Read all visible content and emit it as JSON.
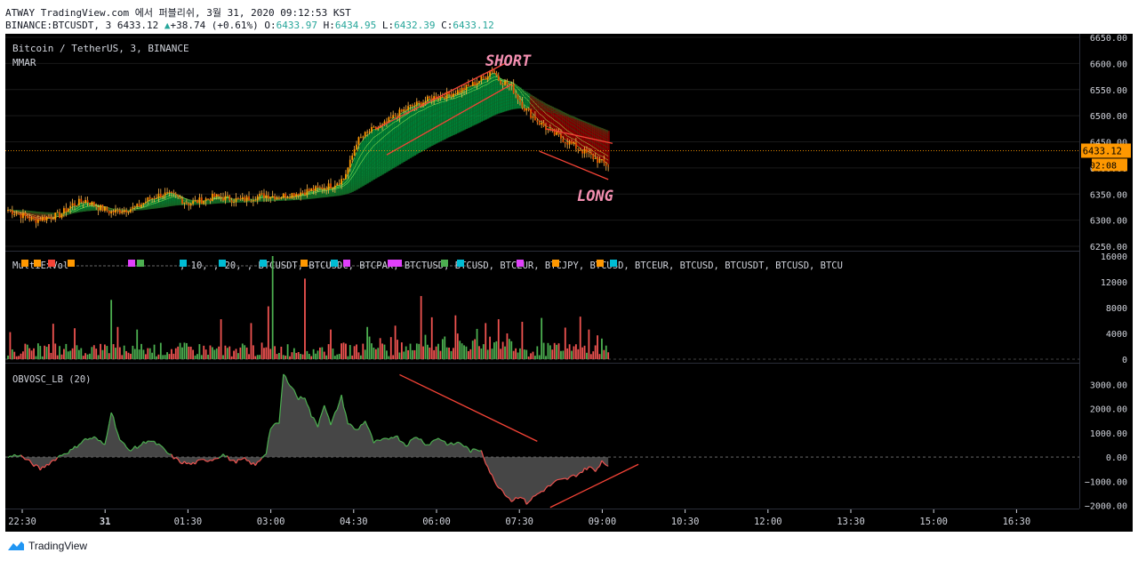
{
  "header": {
    "line1": "ATWAY TradingView.com 에서 퍼블리쉬, 3월 31, 2020 09:12:53 KST",
    "symbol": "BINANCE:BTCUSDT, 3",
    "price": "6433.12",
    "change_arrow": "▲",
    "change": "+38.74 (+0.61%)",
    "o_label": "O:",
    "o": "6433.97",
    "h_label": "H:",
    "h": "6434.95",
    "l_label": "L:",
    "l": "6432.39",
    "c_label": "C:",
    "c": "6433.12"
  },
  "footer": {
    "brand": "TradingView"
  },
  "chart_data": [
    {
      "type": "candlestick",
      "title": "Bitcoin / TetherUS, 3, BINANCE",
      "subtitle": "MMAR",
      "ylim": [
        6245,
        6650
      ],
      "yticks": [
        6250,
        6300,
        6350,
        6400,
        6450,
        6500,
        6550,
        6600,
        6650
      ],
      "ytick_labels": [
        "6250.00",
        "6300.00",
        "6350.00",
        "6400.00",
        "6450.00",
        "6500.00",
        "6550.00",
        "6600.00",
        "6650.00"
      ],
      "price_line": 6433.12,
      "price_tag": "6433.12",
      "countdown_tag": "02:08",
      "annotations": [
        "SHORT",
        "LONG"
      ],
      "close_path": [
        [
          0,
          6320
        ],
        [
          6,
          6310
        ],
        [
          12,
          6300
        ],
        [
          18,
          6305
        ],
        [
          24,
          6310
        ],
        [
          30,
          6330
        ],
        [
          36,
          6338
        ],
        [
          42,
          6325
        ],
        [
          48,
          6315
        ],
        [
          54,
          6320
        ],
        [
          60,
          6325
        ],
        [
          66,
          6342
        ],
        [
          72,
          6350
        ],
        [
          78,
          6345
        ],
        [
          84,
          6332
        ],
        [
          90,
          6338
        ],
        [
          96,
          6345
        ],
        [
          102,
          6342
        ],
        [
          108,
          6338
        ],
        [
          114,
          6344
        ],
        [
          120,
          6348
        ],
        [
          126,
          6345
        ],
        [
          132,
          6350
        ],
        [
          138,
          6355
        ],
        [
          144,
          6360
        ],
        [
          150,
          6366
        ],
        [
          156,
          6380
        ],
        [
          159,
          6410
        ],
        [
          162,
          6450
        ],
        [
          168,
          6470
        ],
        [
          174,
          6480
        ],
        [
          180,
          6500
        ],
        [
          186,
          6515
        ],
        [
          192,
          6525
        ],
        [
          198,
          6535
        ],
        [
          204,
          6540
        ],
        [
          210,
          6548
        ],
        [
          216,
          6560
        ],
        [
          222,
          6575
        ],
        [
          225,
          6590
        ],
        [
          228,
          6570
        ],
        [
          234,
          6555
        ],
        [
          240,
          6515
        ],
        [
          246,
          6490
        ],
        [
          252,
          6470
        ],
        [
          258,
          6455
        ],
        [
          264,
          6440
        ],
        [
          270,
          6425
        ],
        [
          276,
          6410
        ],
        [
          282,
          6400
        ],
        [
          288,
          6410
        ],
        [
          294,
          6425
        ],
        [
          300,
          6433
        ]
      ]
    },
    {
      "type": "bar",
      "title": "MultiExVol",
      "legend_tail": ", 10, , 20, , BTCUSDT, BTCUSDC, BTCPAX, BTCTUSD, BTCUSD, BTCEUR, BTCJPY, BTCUSD, BTCEUR, BTCUSD, BTCUSDT, BTCUSD, BTCU",
      "ylim": [
        0,
        16000
      ],
      "yticks": [
        0,
        4000,
        8000,
        12000,
        16000
      ],
      "ytick_labels": [
        "0",
        "4000",
        "8000",
        "12000",
        "16000"
      ],
      "spikes": [
        [
          1,
          4200
        ],
        [
          21,
          5500
        ],
        [
          31,
          4800
        ],
        [
          48,
          9200
        ],
        [
          51,
          5000
        ],
        [
          60,
          4600
        ],
        [
          99,
          6200
        ],
        [
          113,
          5600
        ],
        [
          121,
          8200
        ],
        [
          123,
          16000
        ],
        [
          138,
          12500
        ],
        [
          150,
          4600
        ],
        [
          167,
          5000
        ],
        [
          180,
          5200
        ],
        [
          192,
          9800
        ],
        [
          197,
          6500
        ],
        [
          208,
          6800
        ],
        [
          218,
          4700
        ],
        [
          222,
          5600
        ],
        [
          228,
          6200
        ],
        [
          232,
          4000
        ],
        [
          239,
          5800
        ],
        [
          248,
          6400
        ],
        [
          259,
          4900
        ],
        [
          266,
          6600
        ],
        [
          270,
          4600
        ],
        [
          274,
          3700
        ],
        [
          276,
          3200
        ]
      ]
    },
    {
      "type": "area",
      "title": "OBVOSC_LB (20)",
      "ylim": [
        -2200,
        3600
      ],
      "yticks": [
        -2000,
        -1000,
        0,
        1000,
        2000,
        3000
      ],
      "ytick_labels": [
        "−2000.00",
        "−1000.00",
        "0.00",
        "1000.00",
        "2000.00",
        "3000.00"
      ],
      "path": [
        [
          0,
          0
        ],
        [
          5,
          100
        ],
        [
          10,
          -200
        ],
        [
          15,
          -500
        ],
        [
          20,
          -200
        ],
        [
          25,
          100
        ],
        [
          30,
          300
        ],
        [
          35,
          700
        ],
        [
          40,
          800
        ],
        [
          45,
          500
        ],
        [
          48,
          1900
        ],
        [
          52,
          700
        ],
        [
          56,
          300
        ],
        [
          60,
          400
        ],
        [
          65,
          700
        ],
        [
          70,
          500
        ],
        [
          75,
          100
        ],
        [
          80,
          -200
        ],
        [
          85,
          -300
        ],
        [
          90,
          -150
        ],
        [
          95,
          -100
        ],
        [
          100,
          100
        ],
        [
          105,
          -200
        ],
        [
          110,
          -100
        ],
        [
          115,
          -350
        ],
        [
          120,
          200
        ],
        [
          122,
          1200
        ],
        [
          126,
          1400
        ],
        [
          128,
          3400
        ],
        [
          132,
          2900
        ],
        [
          135,
          2400
        ],
        [
          138,
          2500
        ],
        [
          141,
          1700
        ],
        [
          144,
          1300
        ],
        [
          147,
          2200
        ],
        [
          150,
          1300
        ],
        [
          155,
          2500
        ],
        [
          158,
          1400
        ],
        [
          162,
          1100
        ],
        [
          166,
          1500
        ],
        [
          170,
          600
        ],
        [
          175,
          700
        ],
        [
          180,
          900
        ],
        [
          185,
          500
        ],
        [
          190,
          850
        ],
        [
          195,
          500
        ],
        [
          200,
          800
        ],
        [
          205,
          500
        ],
        [
          210,
          600
        ],
        [
          215,
          250
        ],
        [
          220,
          300
        ],
        [
          222,
          -200
        ],
        [
          226,
          -1000
        ],
        [
          230,
          -1400
        ],
        [
          234,
          -1800
        ],
        [
          238,
          -1600
        ],
        [
          241,
          -1900
        ],
        [
          245,
          -1600
        ],
        [
          250,
          -1300
        ],
        [
          255,
          -1000
        ],
        [
          260,
          -900
        ],
        [
          265,
          -700
        ],
        [
          270,
          -400
        ],
        [
          273,
          -600
        ],
        [
          276,
          -150
        ],
        [
          278,
          -300
        ]
      ]
    }
  ],
  "time_axis": {
    "labels": [
      "22:30",
      "31",
      "01:30",
      "03:00",
      "04:30",
      "06:00",
      "07:30",
      "09:00",
      "10:30",
      "12:00",
      "13:30",
      "15:00",
      "16:30"
    ]
  },
  "colors": {
    "background": "#000000",
    "up": "#4caf50",
    "down": "#ef5350",
    "candle_body": "#ff9800",
    "ribbon_green": "#00c853",
    "ribbon_red": "#d50000",
    "annotation": "#f48fb1",
    "price_tag": "#ff9800",
    "trend_line": "#f44336"
  }
}
